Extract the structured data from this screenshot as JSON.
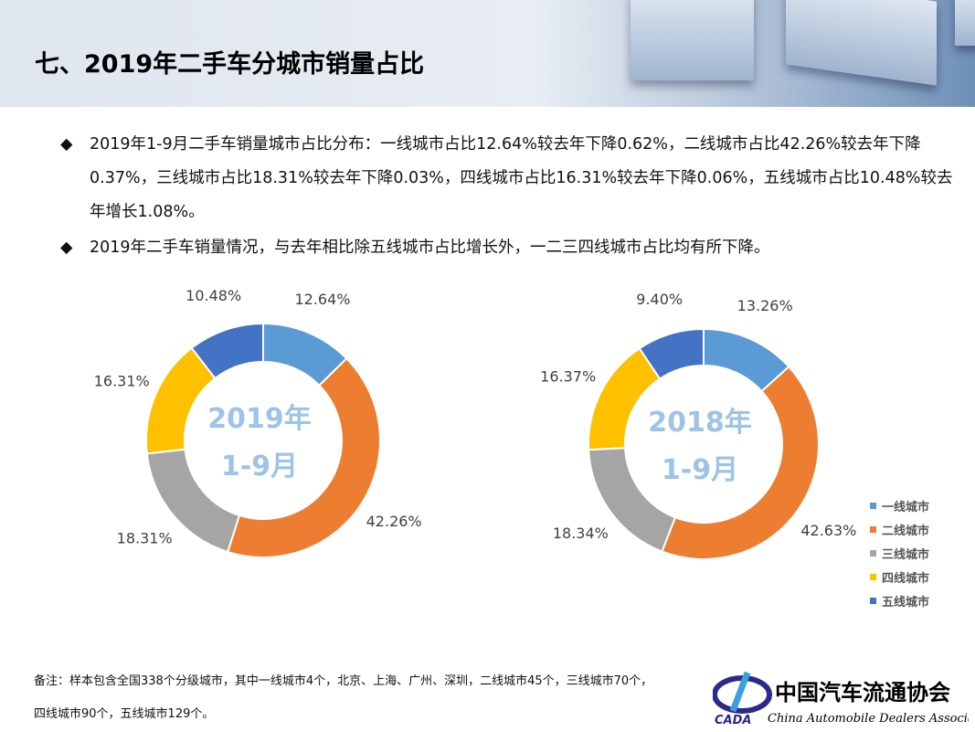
{
  "title": "七、2019年二手车分城市销量占比",
  "bullets": [
    "2019年1-9月二手车销量城市占比分布：一线城市占比12.64%较去年下降0.62%，二线城市占比42.26%较去年下降0.37%，三线城市占比18.31%较去年下降0.03%，四线城市占比16.31%较去年下降0.06%，五线城市占比10.48%较去年增长1.08%。",
    "2019年二手车销量情况，与去年相比除五线城市占比增长外，一二三四线城市占比均有所下降。"
  ],
  "bullet_icon": "diamond-icon",
  "note": "备注：样本包含全国338个分级城市，其中一线城市4个，北京、上海、广州、深圳，二线城市45个，三线城市70个，四线城市90个，五线城市129个。",
  "logo": {
    "cn": "中国汽车流通协会",
    "en": "China Automobile Dealers Association",
    "abbr": "CADA"
  },
  "colors": [
    "#5B9BD5",
    "#ED7D31",
    "#A5A5A5",
    "#FFC000",
    "#4472C4"
  ],
  "chart_data": [
    {
      "type": "pie",
      "donut": true,
      "center_label": [
        "2019年",
        "1-9月"
      ],
      "categories": [
        "一线城市",
        "二线城市",
        "三线城市",
        "四线城市",
        "五线城市"
      ],
      "values": [
        12.64,
        42.26,
        18.31,
        16.31,
        10.48
      ],
      "labels": [
        "12.64%",
        "42.26%",
        "18.31%",
        "16.31%",
        "10.48%"
      ]
    },
    {
      "type": "pie",
      "donut": true,
      "center_label": [
        "2018年",
        "1-9月"
      ],
      "categories": [
        "一线城市",
        "二线城市",
        "三线城市",
        "四线城市",
        "五线城市"
      ],
      "values": [
        13.26,
        42.63,
        18.34,
        16.37,
        9.4
      ],
      "labels": [
        "13.26%",
        "42.63%",
        "18.34%",
        "16.37%",
        "9.40%"
      ],
      "legend": "right"
    }
  ]
}
